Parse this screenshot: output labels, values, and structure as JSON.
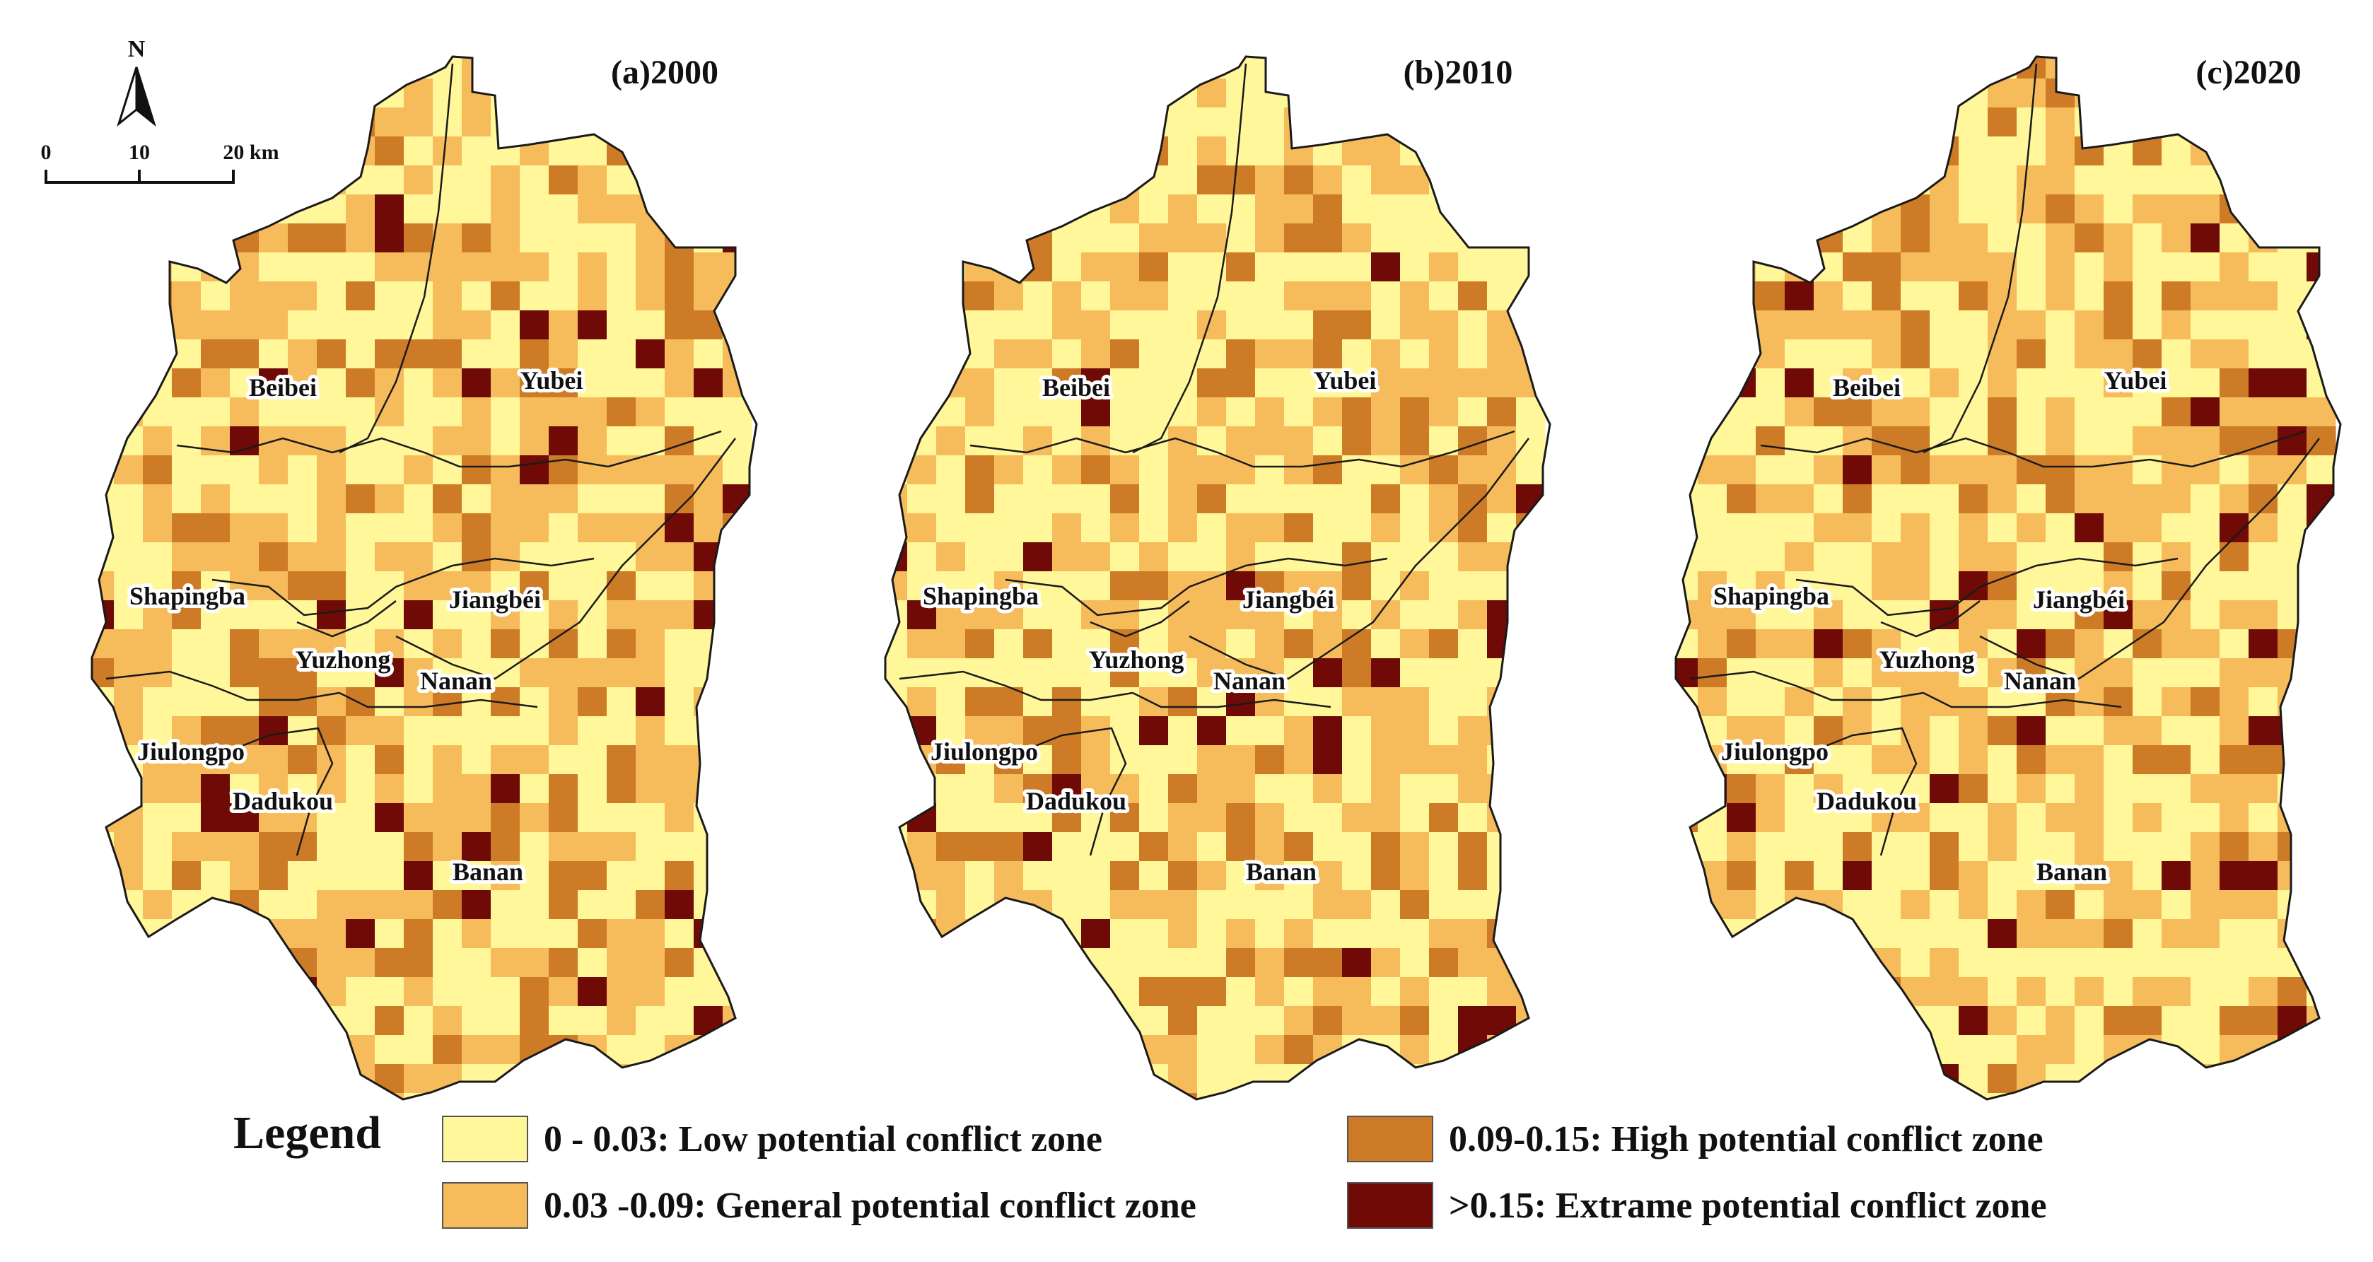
{
  "classes": [
    {
      "id": "low",
      "label": "0 - 0.03: Low potential conflict zone",
      "color": "#fff79a"
    },
    {
      "id": "general",
      "label": "0.03 -0.09: General potential conflict zone",
      "color": "#f6bc5c"
    },
    {
      "id": "high",
      "label": "0.09-0.15: High potential conflict zone",
      "color": "#cd7b27"
    },
    {
      "id": "extreme",
      "label": ">0.15: Extrame potential conflict zone",
      "color": "#6f0a07"
    }
  ],
  "legend": {
    "title": "Legend"
  },
  "north_arrow": {
    "label": "N"
  },
  "scale_bar": {
    "ticks": [
      "0",
      "10",
      "20 km"
    ]
  },
  "panels": [
    {
      "title": "(a)2000",
      "seed": 2000
    },
    {
      "title": "(b)2010",
      "seed": 2010
    },
    {
      "title": "(c)2020",
      "seed": 2020
    }
  ],
  "districts": [
    "Beibei",
    "Yubei",
    "Shapingba",
    "Jiangbéi",
    "Yuzhong",
    "Nanan",
    "Jiulongpo",
    "Dadukou",
    "Banan"
  ]
}
